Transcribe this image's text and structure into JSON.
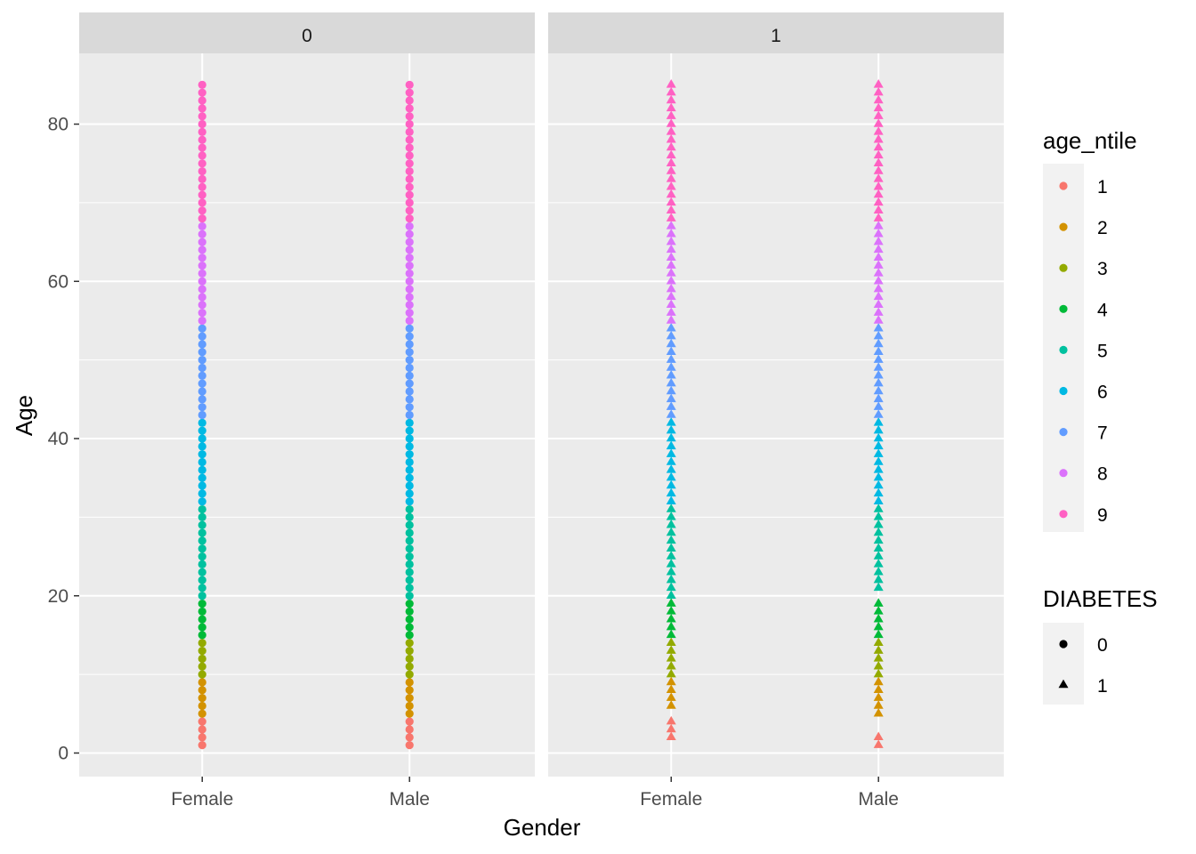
{
  "chart_data": {
    "type": "scatter",
    "facet_variable": "DIABETES",
    "facets": [
      {
        "label": "0",
        "series": [
          {
            "x": "Female",
            "y_min": 1,
            "y_max": 85,
            "y_step": 1
          },
          {
            "x": "Male",
            "y_min": 1,
            "y_max": 85,
            "y_step": 1
          }
        ]
      },
      {
        "label": "1",
        "series": [
          {
            "x": "Female",
            "y_min": 2,
            "y_max": 85,
            "y_step": 1,
            "y_missing": [
              5
            ]
          },
          {
            "x": "Male",
            "y_min": 1,
            "y_max": 85,
            "y_step": 1,
            "y_missing": [
              3,
              4,
              20
            ]
          }
        ]
      }
    ],
    "x_categories": [
      "Female",
      "Male"
    ],
    "xlabel": "Gender",
    "ylabel": "Age",
    "ylim": [
      -3,
      89
    ],
    "y_ticks": [
      0,
      20,
      40,
      60,
      80
    ],
    "grid": true,
    "color_scale": {
      "title": "age_ntile",
      "breaks": [
        {
          "label": "1",
          "color": "#F8766D",
          "max_age": 4
        },
        {
          "label": "2",
          "color": "#D39200",
          "max_age": 9
        },
        {
          "label": "3",
          "color": "#93AA00",
          "max_age": 14
        },
        {
          "label": "4",
          "color": "#00BA38",
          "max_age": 19
        },
        {
          "label": "5",
          "color": "#00C19F",
          "max_age": 31
        },
        {
          "label": "6",
          "color": "#00B9E3",
          "max_age": 42
        },
        {
          "label": "7",
          "color": "#619CFF",
          "max_age": 54
        },
        {
          "label": "8",
          "color": "#DB72FB",
          "max_age": 67
        },
        {
          "label": "9",
          "color": "#FF61C3",
          "max_age": 85
        }
      ]
    },
    "shape_scale": {
      "title": "DIABETES",
      "breaks": [
        {
          "label": "0",
          "shape": "circle"
        },
        {
          "label": "1",
          "shape": "triangle"
        }
      ]
    },
    "legend_position": "right"
  }
}
